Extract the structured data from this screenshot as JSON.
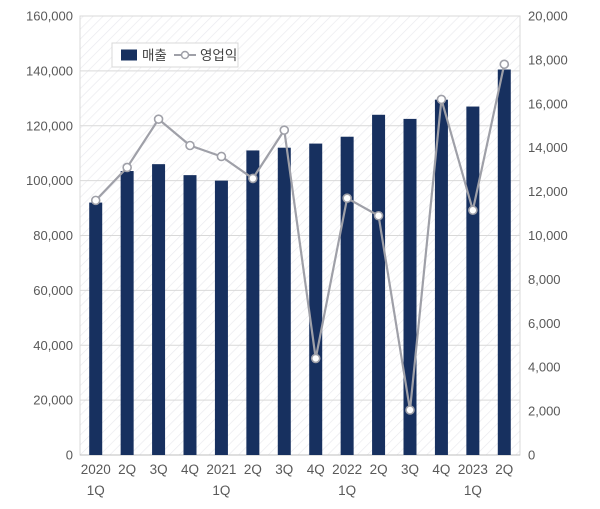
{
  "chart_data": {
    "type": "bar",
    "subtype": "combo-bar-line-dual-axis",
    "title": "",
    "xlabel": "",
    "ylabel": "",
    "categories": [
      "2020 1Q",
      "2Q",
      "3Q",
      "4Q",
      "2021 1Q",
      "2Q",
      "3Q",
      "4Q",
      "2022 1Q",
      "2Q",
      "3Q",
      "4Q",
      "2023 1Q",
      "2Q"
    ],
    "category_label_lines": [
      [
        "2020",
        "1Q"
      ],
      [
        "2Q"
      ],
      [
        "3Q"
      ],
      [
        "4Q"
      ],
      [
        "2021",
        "1Q"
      ],
      [
        "2Q"
      ],
      [
        "3Q"
      ],
      [
        "4Q"
      ],
      [
        "2022",
        "1Q"
      ],
      [
        "2Q"
      ],
      [
        "3Q"
      ],
      [
        "4Q"
      ],
      [
        "2023",
        "1Q"
      ],
      [
        "2Q"
      ]
    ],
    "series": [
      {
        "name": "매출",
        "type": "bar",
        "axis": "left",
        "color": "#17305f",
        "values": [
          92000,
          103500,
          106000,
          102000,
          100000,
          111000,
          112000,
          113500,
          116000,
          124000,
          122500,
          129500,
          127000,
          140500
        ]
      },
      {
        "name": "영업익",
        "type": "line",
        "axis": "right",
        "color": "#9fa0a8",
        "marker": "circle-open",
        "values": [
          11600,
          13100,
          15300,
          14100,
          13600,
          12600,
          14800,
          4400,
          11700,
          10900,
          2050,
          16200,
          11150,
          17800
        ]
      }
    ],
    "left_axis": {
      "min": 0,
      "max": 160000,
      "step": 20000,
      "tick_labels": [
        "0",
        "20,000",
        "40,000",
        "60,000",
        "80,000",
        "100,000",
        "120,000",
        "140,000",
        "160,000"
      ]
    },
    "right_axis": {
      "min": 0,
      "max": 20000,
      "step": 2000,
      "tick_labels": [
        "0",
        "2,000",
        "4,000",
        "6,000",
        "8,000",
        "10,000",
        "12,000",
        "14,000",
        "16,000",
        "18,000",
        "20,000"
      ]
    },
    "legend": {
      "position": "top-left-inside",
      "entries": [
        "매출",
        "영업익"
      ]
    },
    "grid": "horizontal",
    "plot_background": "diagonal-hatch",
    "colors": {
      "bar": "#17305f",
      "line": "#9fa0a8",
      "grid": "#d9d9d9",
      "axis_text": "#595959",
      "hatch": "#e9e9ee",
      "plot_border": "#d9d9d9"
    }
  }
}
